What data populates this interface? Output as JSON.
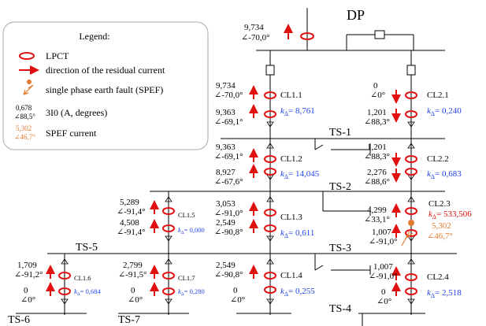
{
  "title": "DP",
  "legend": {
    "title": "Legend:",
    "lpct": "LPCT",
    "direction": "direction of the residual current",
    "spef": "single phase earth fault (SPEF)",
    "sample_mag": "0,678",
    "sample_ang": "∠88,5°",
    "threeI0": "3I0 (A, degrees)",
    "spef_mag": "5,302",
    "spef_ang": "∠46,7°",
    "spef_current": "SPEF current"
  },
  "feeder": {
    "mag": "9,734",
    "ang": "∠-70,0°"
  },
  "stations": {
    "ts1": "TS-1",
    "ts2": "TS-2",
    "ts3": "TS-3",
    "ts4": "TS-4",
    "ts5": "TS-5",
    "ts6": "TS-6",
    "ts7": "TS-7"
  },
  "cl": {
    "cl11": {
      "name": "CL1.1",
      "k": "8,761",
      "top_mag": "9,734",
      "top_ang": "∠-70,0°",
      "bot_mag": "9,363",
      "bot_ang": "∠-69,1°"
    },
    "cl12": {
      "name": "CL1.2",
      "k": "14,045",
      "top_mag": "9,363",
      "top_ang": "∠-69,1°",
      "bot_mag": "8,927",
      "bot_ang": "∠-67,6°"
    },
    "cl13": {
      "name": "CL1.3",
      "k": "0,611",
      "top_mag": "3,053",
      "top_ang": "∠-91,0°",
      "bot_mag": "2,549",
      "bot_ang": "∠-90,8°"
    },
    "cl14": {
      "name": "CL1.4",
      "k": "0,255",
      "top_mag": "2,549",
      "top_ang": "∠-90,8°",
      "bot_mag": "0",
      "bot_ang": "∠0°"
    },
    "cl15": {
      "name": "CL1.5",
      "k": "0,000",
      "top_mag": "5,289",
      "top_ang": "∠-91,4°",
      "bot_mag": "4,508",
      "bot_ang": "∠-91,4°"
    },
    "cl16": {
      "name": "CL1.6",
      "k": "0,684",
      "top_mag": "1,709",
      "top_ang": "∠-91,2°",
      "bot_mag": "0",
      "bot_ang": "∠0°"
    },
    "cl17": {
      "name": "CL1.7",
      "k": "0,280",
      "top_mag": "2,799",
      "top_ang": "∠-91,5°",
      "bot_mag": "0",
      "bot_ang": "∠0°"
    },
    "cl21": {
      "name": "CL2.1",
      "k": "0,240",
      "top_mag": "0",
      "top_ang": "∠0°",
      "bot_mag": "1,201",
      "bot_ang": "∠88,3°"
    },
    "cl22": {
      "name": "CL2.2",
      "k": "0,683",
      "top_mag": "1,201",
      "top_ang": "∠88,3°",
      "bot_mag": "2,276",
      "bot_ang": "∠88,6°"
    },
    "cl23": {
      "name": "CL2.3",
      "k": "533,506",
      "top_mag": "4,299",
      "top_ang": "∠33,1°",
      "bot_mag": "1,007",
      "bot_ang": "∠-91,0°",
      "spef_mag": "5,302",
      "spef_ang": "∠46,7°"
    },
    "cl24": {
      "name": "CL2.4",
      "k": "2,518",
      "top_mag": "1,007",
      "top_ang": "∠-91,0°",
      "bot_mag": "0",
      "bot_ang": "∠0°"
    }
  },
  "k_prefix": "k",
  "k_sub": "Δ",
  "colors": {
    "lpct": "#e01010",
    "arrow": "#e01010",
    "k": "#2244ee",
    "spef": "#e07a2f",
    "line": "#000000",
    "highlight_k": "#e01010"
  }
}
